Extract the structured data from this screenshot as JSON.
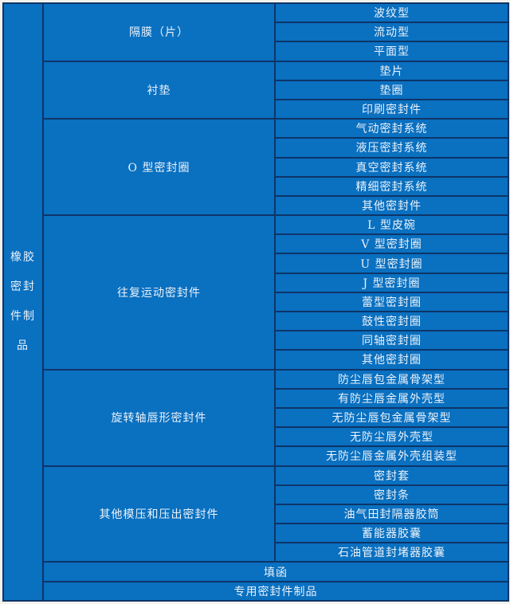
{
  "colors": {
    "cell_blue": "#0a70c0",
    "grid_navy": "#0d3568",
    "text_white": "#eaf2fa",
    "page_margin": "#f2f1ec"
  },
  "table": {
    "root": {
      "label": "橡胶密封件制品",
      "lines": [
        "橡胶",
        "密封",
        "件制",
        "品"
      ]
    },
    "sections": [
      {
        "label": "隔膜（片）",
        "items": [
          "波纹型",
          "流动型",
          "平面型"
        ]
      },
      {
        "label": "衬垫",
        "items": [
          "垫片",
          "垫圈",
          "印刷密封件"
        ]
      },
      {
        "label": "O 型密封圈",
        "items": [
          "气动密封系统",
          "液压密封系统",
          "真空密封系统",
          "精细密封系统",
          "其他密封件"
        ]
      },
      {
        "label": "往复运动密封件",
        "items": [
          "L 型皮碗",
          "V 型密封圈",
          "U 型密封圈",
          "J 型密封圈",
          "蕾型密封圈",
          "鼓性密封圈",
          "同轴密封圈",
          "其他密封圈"
        ]
      },
      {
        "label": "旋转轴唇形密封件",
        "items": [
          "防尘唇包金属骨架型",
          "有防尘唇金属外壳型",
          "无防尘唇包金属骨架型",
          "无防尘唇外壳型",
          "无防尘唇金属外壳组装型"
        ]
      },
      {
        "label": "其他模压和压出密封件",
        "items": [
          "密封套",
          "密封条",
          "油气田封隔器胶筒",
          "蓄能器胶囊",
          "石油管道封堵器胶囊"
        ]
      }
    ],
    "full_rows": [
      "填函",
      "专用密封件制品"
    ]
  }
}
